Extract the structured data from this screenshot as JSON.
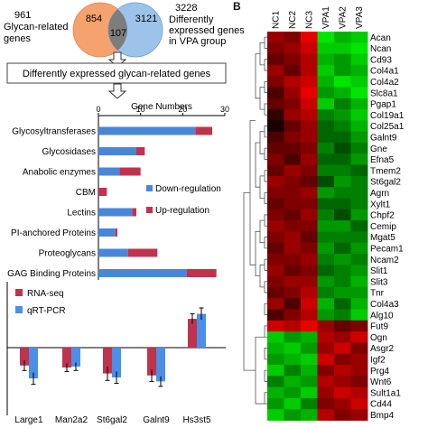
{
  "panel_b_letter": "B",
  "venn": {
    "left_count": "961",
    "left_label": [
      "Glycan-related",
      "genes"
    ],
    "right_count": "3228",
    "right_label": [
      "Differently",
      "expressed genes",
      "in VPA group"
    ],
    "left_only": "854",
    "overlap": "107",
    "right_only": "3121",
    "left_color": "#f6a26e",
    "right_color": "#9cc4ea",
    "overlap_color": "#7d7d7d"
  },
  "flow_box": "Differently expressed glycan-related genes",
  "bar_panel": {
    "chart_data": {
      "type": "bar",
      "orientation": "horizontal",
      "stacked": true,
      "xlabel": "Gene Numbers",
      "xlim": [
        0,
        30
      ],
      "xticks": [
        "0",
        "10",
        "20",
        "30"
      ],
      "categories": [
        "Glycosyltransferases",
        "Glycosidases",
        "Anabolic enzymes",
        "CBM",
        "Lectins",
        "PI-anchored Proteins",
        "Proteoglycans",
        "GAG Binding Proteins"
      ],
      "series": [
        {
          "name": "Down-regulation",
          "color": "#4a86d8",
          "values": [
            23,
            9,
            5,
            0,
            8,
            4,
            7,
            21
          ]
        },
        {
          "name": "Up-regulation",
          "color": "#c0334d",
          "values": [
            4,
            2,
            5,
            2,
            1,
            0.5,
            7,
            7
          ]
        }
      ],
      "legend_position": "right"
    }
  },
  "qpcr_panel": {
    "chart_data": {
      "type": "bar",
      "grouped": true,
      "categories": [
        "Large1",
        "Man2a2",
        "St6gal2",
        "Galnt9",
        "Hs3st5"
      ],
      "series": [
        {
          "name": "RNA-seq",
          "color": "#c0334d",
          "values": [
            -0.9,
            -1.0,
            -1.3,
            -1.4,
            1.45
          ]
        },
        {
          "name": "qRT-PCR",
          "color": "#4a90e8",
          "values": [
            -1.55,
            -0.95,
            -1.5,
            -1.7,
            1.7
          ]
        }
      ],
      "errors": [
        [
          0.25,
          0.2,
          0.35,
          0.3,
          0.25
        ],
        [
          0.3,
          0.2,
          0.3,
          0.25,
          0.3
        ]
      ],
      "legend_position": "top-left"
    }
  },
  "heatmap": {
    "chart_data": {
      "type": "heatmap",
      "columns": [
        "NC1",
        "NC2",
        "NC3",
        "VPA1",
        "VPA2",
        "VPA3"
      ],
      "rows": [
        "Acan",
        "Ncan",
        "Cd93",
        "Col4a1",
        "Col4a2",
        "Slc8a1",
        "Pgap1",
        "Col19a1",
        "Col25a1",
        "Galnt9",
        "Gne",
        "Efna5",
        "Tmem2",
        "St6gal2",
        "Agrn",
        "Xylt1",
        "Chpf2",
        "Cemip",
        "Mgat5",
        "Pecam1",
        "Ncam2",
        "Slit1",
        "Slit3",
        "Tnr",
        "Col4a3",
        "Alg10",
        "Fut9",
        "Ogn",
        "Asgr2",
        "Igf2",
        "Prg4",
        "Wnt6",
        "Sult1a1",
        "Cd44",
        "Bmp4"
      ],
      "color_low": "#00ff00",
      "color_mid": "#000000",
      "color_high": "#ff0000",
      "values": [
        [
          0.6,
          0.5,
          0.9,
          -0.9,
          -0.7,
          -0.8
        ],
        [
          0.5,
          0.6,
          0.8,
          -0.8,
          -0.8,
          -0.9
        ],
        [
          0.4,
          0.5,
          0.7,
          -0.7,
          -0.6,
          -0.8
        ],
        [
          0.6,
          0.4,
          0.7,
          -0.8,
          -0.6,
          -0.7
        ],
        [
          0.5,
          0.7,
          0.8,
          -0.7,
          -0.9,
          -0.8
        ],
        [
          0.3,
          0.6,
          0.9,
          -0.6,
          -0.7,
          -0.9
        ],
        [
          0.4,
          0.5,
          0.8,
          -0.8,
          -0.5,
          -0.7
        ],
        [
          0.2,
          0.6,
          0.7,
          -0.5,
          -0.6,
          -0.8
        ],
        [
          0.1,
          0.4,
          0.6,
          -0.4,
          -0.5,
          -0.7
        ],
        [
          0.3,
          0.5,
          0.6,
          -0.4,
          -0.4,
          -0.6
        ],
        [
          0.4,
          0.4,
          0.5,
          -0.5,
          -0.3,
          -0.5
        ],
        [
          0.5,
          0.3,
          0.6,
          -0.4,
          -0.4,
          -0.6
        ],
        [
          0.4,
          0.6,
          0.5,
          -0.5,
          -0.5,
          -0.4
        ],
        [
          0.6,
          0.5,
          0.4,
          -0.3,
          -0.6,
          -0.5
        ],
        [
          0.5,
          0.5,
          0.6,
          -0.6,
          -0.5,
          -0.5
        ],
        [
          0.4,
          0.5,
          0.5,
          -0.4,
          -0.4,
          -0.5
        ],
        [
          0.5,
          0.4,
          0.6,
          -0.5,
          -0.3,
          -0.6
        ],
        [
          0.6,
          0.5,
          0.5,
          -0.6,
          -0.6,
          -0.4
        ],
        [
          0.5,
          0.6,
          0.4,
          -0.5,
          -0.5,
          -0.5
        ],
        [
          0.4,
          0.6,
          0.5,
          -0.6,
          -0.4,
          -0.6
        ],
        [
          0.5,
          0.5,
          0.6,
          -0.5,
          -0.6,
          -0.5
        ],
        [
          0.6,
          0.4,
          0.5,
          -0.4,
          -0.5,
          -0.6
        ],
        [
          0.5,
          0.6,
          0.6,
          -0.6,
          -0.5,
          -0.7
        ],
        [
          0.4,
          0.5,
          0.7,
          -0.5,
          -0.6,
          -0.6
        ],
        [
          0.6,
          0.3,
          0.8,
          -0.7,
          -0.4,
          -0.7
        ],
        [
          0.3,
          0.5,
          0.7,
          -0.6,
          -0.5,
          -0.8
        ],
        [
          0.8,
          0.7,
          0.9,
          0.6,
          0.4,
          0.5
        ],
        [
          -0.8,
          -0.6,
          -0.7,
          0.7,
          0.6,
          0.8
        ],
        [
          -0.7,
          -0.8,
          -0.6,
          0.6,
          0.8,
          0.5
        ],
        [
          -0.6,
          -0.7,
          -0.8,
          0.8,
          0.5,
          0.6
        ],
        [
          -0.8,
          -0.5,
          -0.7,
          0.5,
          0.7,
          0.6
        ],
        [
          -0.5,
          -0.7,
          -0.6,
          0.7,
          0.6,
          0.5
        ],
        [
          -0.7,
          -0.6,
          -0.8,
          0.6,
          0.8,
          0.7
        ],
        [
          -0.6,
          -0.8,
          -0.5,
          0.5,
          0.6,
          0.8
        ],
        [
          -0.8,
          -0.6,
          -0.7,
          0.7,
          0.5,
          0.6
        ]
      ],
      "row_dendrogram": true,
      "column_dendrogram": false
    }
  }
}
